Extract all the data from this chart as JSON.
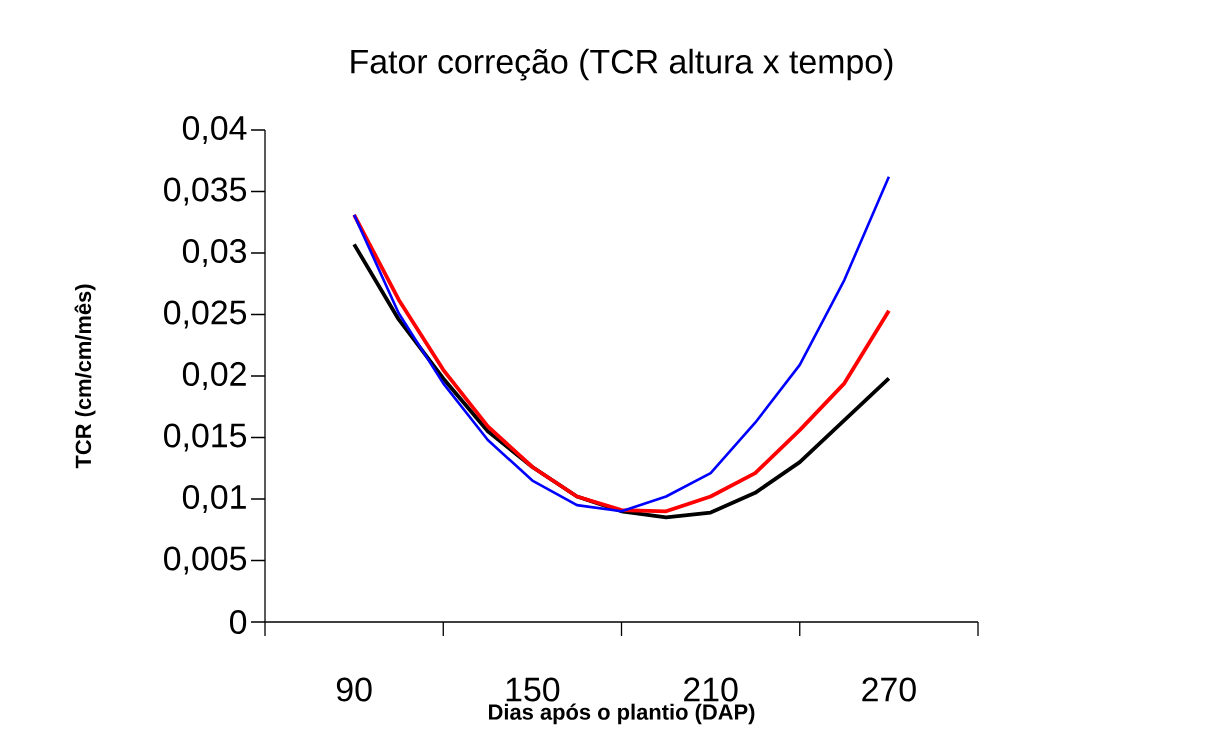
{
  "chart_data": {
    "type": "line",
    "title": "Fator correção (TCR altura x tempo)",
    "xlabel": "Dias após o plantio (DAP)",
    "ylabel": "TCR (cm/cm/mês)",
    "x": [
      90,
      105,
      120,
      135,
      150,
      165,
      180,
      195,
      210,
      225,
      240,
      255,
      270
    ],
    "series": [
      {
        "color": "#0000ff",
        "values": [
          0.0331,
          0.0251,
          0.0194,
          0.0148,
          0.0115,
          0.0095,
          0.009,
          0.0102,
          0.0121,
          0.0162,
          0.0209,
          0.0278,
          0.0362
        ]
      },
      {
        "color": "#ff0000",
        "values": [
          0.0331,
          0.0262,
          0.0205,
          0.0159,
          0.0126,
          0.0102,
          0.0091,
          0.009,
          0.0102,
          0.0121,
          0.0156,
          0.0194,
          0.0253
        ]
      },
      {
        "color": "#000000",
        "values": [
          0.0307,
          0.0246,
          0.0198,
          0.0155,
          0.0126,
          0.0102,
          0.009,
          0.0085,
          0.0089,
          0.0105,
          0.013,
          0.0164,
          0.0198
        ]
      }
    ],
    "xlim": [
      60,
      300
    ],
    "xticks": [
      {
        "value": 60,
        "label": null
      },
      90,
      {
        "value": 120,
        "label": null
      },
      150,
      {
        "value": 180,
        "label": null
      },
      210,
      {
        "value": 240,
        "label": null
      },
      270,
      {
        "value": 300,
        "label": null
      }
    ],
    "ylim": [
      0,
      0.04
    ],
    "yticks": [
      0,
      {
        "value": 0.005,
        "label": "0,005"
      },
      {
        "value": 0.01,
        "label": "0,01"
      },
      {
        "value": 0.015,
        "label": "0,015"
      },
      {
        "value": 0.02,
        "label": "0,02"
      },
      {
        "value": 0.025,
        "label": "0,025"
      },
      {
        "value": 0.03,
        "label": "0,03"
      },
      {
        "value": 0.035,
        "label": "0,035"
      },
      {
        "value": 0.04,
        "label": "0,04"
      }
    ],
    "marker": "none",
    "line_style": "solid"
  }
}
